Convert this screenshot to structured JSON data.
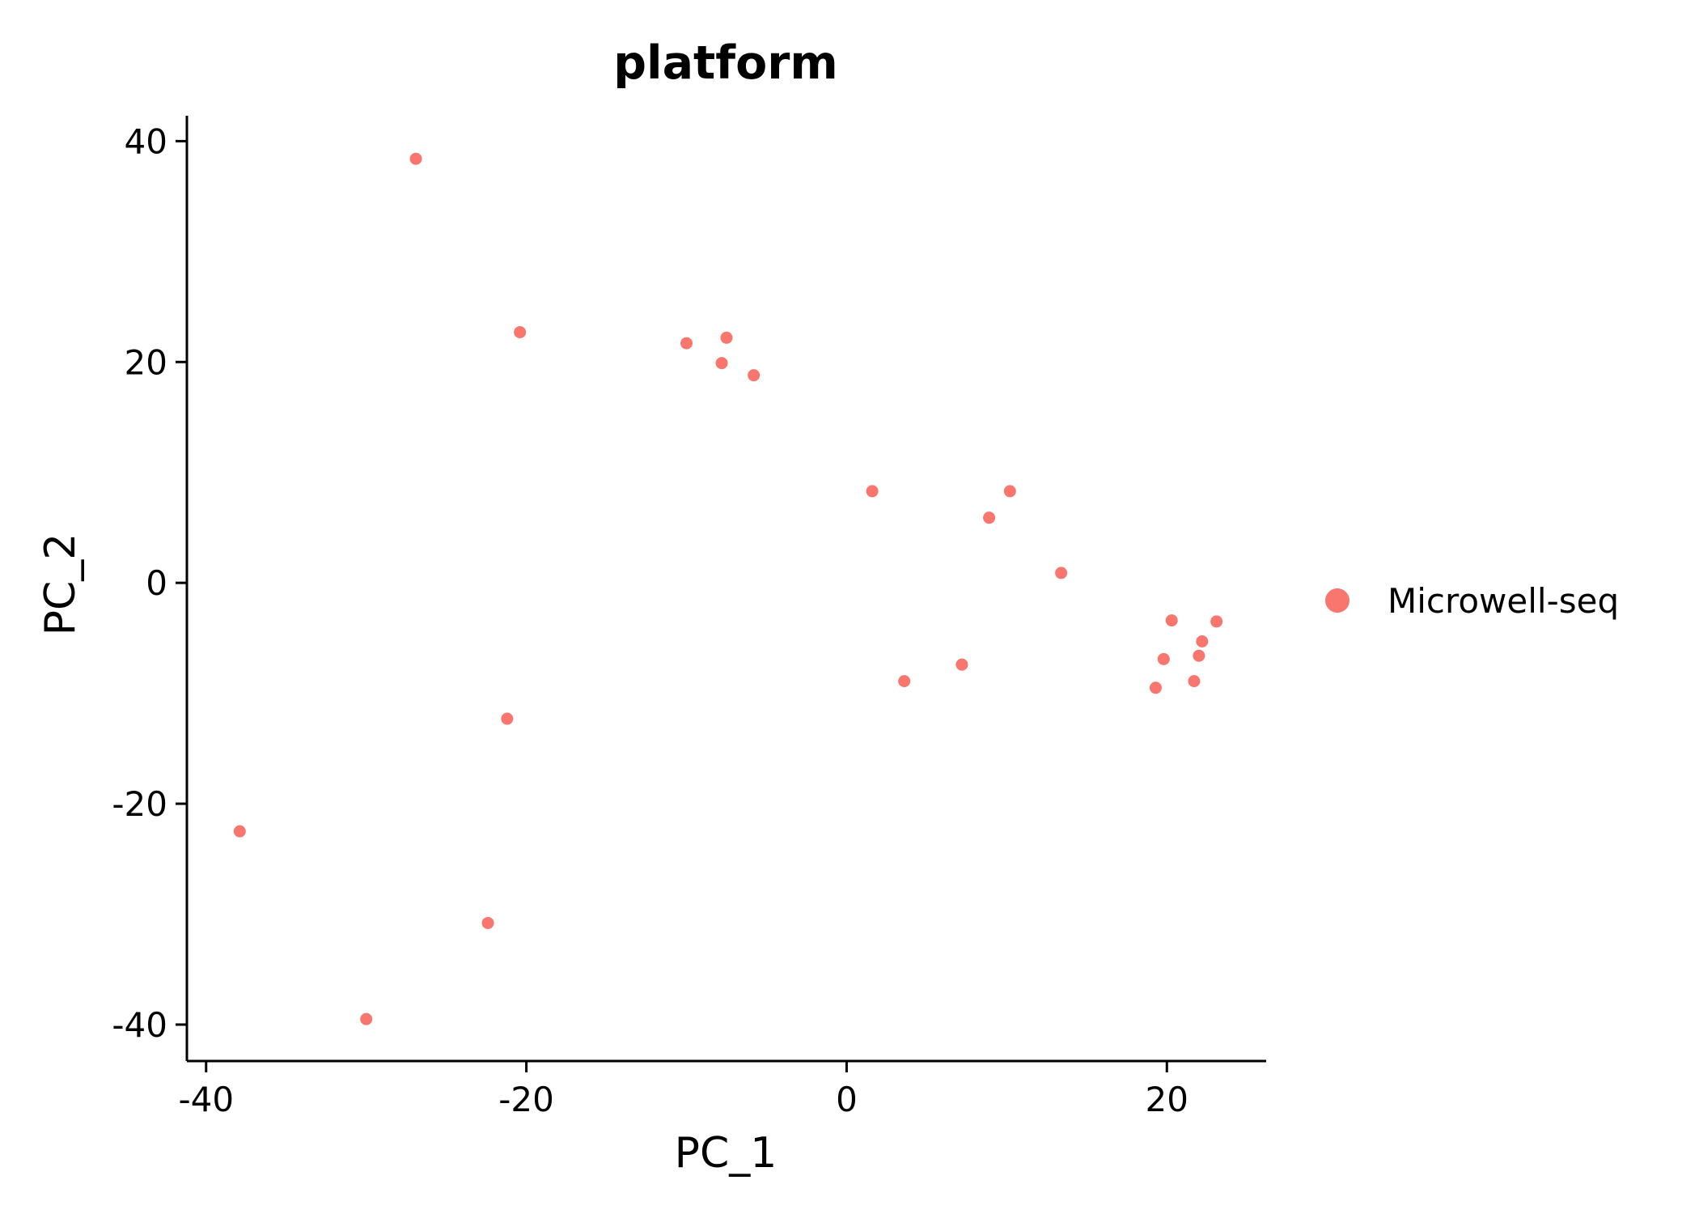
{
  "chart_data": {
    "type": "scatter",
    "title": "platform",
    "xlabel": "PC_1",
    "ylabel": "PC_2",
    "xlim": [
      -41.2,
      26.2
    ],
    "ylim": [
      -43.3,
      42.3
    ],
    "xticks": [
      -40,
      -20,
      0,
      20
    ],
    "yticks": [
      -40,
      -20,
      0,
      20,
      40
    ],
    "xtick_labels": [
      "-40",
      "-20",
      "0",
      "20"
    ],
    "ytick_labels": [
      "-40",
      "-20",
      "0",
      "20",
      "40"
    ],
    "grid": false,
    "legend_position": "right",
    "series": [
      {
        "name": "Microwell-seq",
        "color": "#F8766D",
        "points": [
          {
            "x": -26.9,
            "y": 38.4
          },
          {
            "x": -20.4,
            "y": 22.7
          },
          {
            "x": -10.0,
            "y": 21.7
          },
          {
            "x": -7.5,
            "y": 22.2
          },
          {
            "x": -7.8,
            "y": 19.9
          },
          {
            "x": -5.8,
            "y": 18.8
          },
          {
            "x": 1.6,
            "y": 8.3
          },
          {
            "x": 10.2,
            "y": 8.3
          },
          {
            "x": 8.9,
            "y": 5.9
          },
          {
            "x": 13.4,
            "y": 0.9
          },
          {
            "x": 20.3,
            "y": -3.4
          },
          {
            "x": 23.1,
            "y": -3.5
          },
          {
            "x": 22.2,
            "y": -5.3
          },
          {
            "x": 19.8,
            "y": -6.9
          },
          {
            "x": 22.0,
            "y": -6.6
          },
          {
            "x": 21.7,
            "y": -8.9
          },
          {
            "x": 19.3,
            "y": -9.5
          },
          {
            "x": 7.2,
            "y": -7.4
          },
          {
            "x": 3.6,
            "y": -8.9
          },
          {
            "x": -21.2,
            "y": -12.3
          },
          {
            "x": -37.9,
            "y": -22.5
          },
          {
            "x": -22.4,
            "y": -30.8
          },
          {
            "x": -30.0,
            "y": -39.5
          }
        ]
      }
    ]
  }
}
